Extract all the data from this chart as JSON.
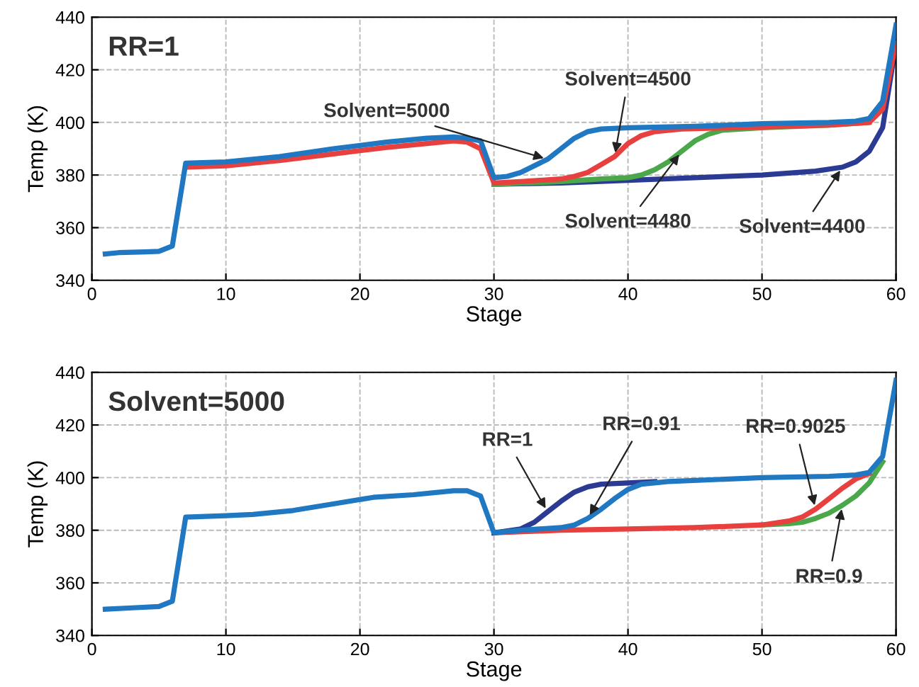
{
  "chart_data": [
    {
      "type": "line",
      "title": "RR=1",
      "xlabel": "Stage",
      "ylabel": "Temp (K)",
      "xlim": [
        0,
        60
      ],
      "ylim": [
        340,
        440
      ],
      "xticks": [
        0,
        10,
        20,
        30,
        40,
        50,
        60
      ],
      "yticks": [
        340,
        360,
        380,
        400,
        420,
        440
      ],
      "grid": true,
      "legend": false,
      "marker": "none",
      "line_style": "solid",
      "series": [
        {
          "name": "Solvent=4400",
          "color": "#2b3a92",
          "x": [
            30,
            35,
            40,
            45,
            50,
            54,
            56,
            57,
            58,
            59,
            60
          ],
          "values": [
            376.5,
            377,
            378,
            379,
            380,
            381.5,
            383,
            385,
            389,
            398,
            430
          ]
        },
        {
          "name": "Solvent=4480",
          "color": "#4aa84a",
          "x": [
            30,
            35,
            38,
            40,
            41,
            42,
            43,
            44,
            45,
            46,
            47,
            50,
            55,
            58
          ],
          "values": [
            376.5,
            377.5,
            378.5,
            379,
            380,
            382,
            385,
            389,
            393,
            395.5,
            397,
            398,
            399,
            400
          ]
        },
        {
          "name": "Solvent=4500",
          "color": "#e8403f",
          "x": [
            7,
            10,
            14,
            18,
            22,
            25,
            27,
            28,
            29,
            30,
            32,
            35,
            36,
            37,
            38,
            39,
            40,
            41,
            42,
            44,
            48,
            55,
            58,
            59,
            60
          ],
          "values": [
            383,
            383.5,
            385.5,
            388,
            390.5,
            392,
            393,
            392.5,
            390,
            377,
            377.5,
            378.5,
            379.5,
            381,
            384,
            387,
            392,
            395,
            396.5,
            397.5,
            398,
            399,
            400,
            405,
            430
          ]
        },
        {
          "name": "Solvent=5000",
          "color": "#1f78c1",
          "x": [
            1,
            2,
            4,
            5,
            6,
            7,
            10,
            14,
            18,
            22,
            25,
            27,
            28,
            29,
            30,
            31,
            32,
            34,
            35,
            36,
            37,
            38,
            40,
            45,
            50,
            55,
            57,
            58,
            59,
            60
          ],
          "values": [
            350,
            350.5,
            350.8,
            351,
            353,
            384.5,
            385,
            387,
            390,
            392.5,
            394,
            394.5,
            394,
            393,
            379,
            379.5,
            381,
            386,
            390,
            394,
            396.5,
            397.5,
            398,
            398.5,
            399.5,
            400,
            400.5,
            401.5,
            408,
            437
          ]
        }
      ]
    },
    {
      "type": "line",
      "title": "Solvent=5000",
      "xlabel": "Stage",
      "ylabel": "Temp (K)",
      "xlim": [
        0,
        60
      ],
      "ylim": [
        340,
        440
      ],
      "xticks": [
        0,
        10,
        20,
        30,
        40,
        50,
        60
      ],
      "yticks": [
        340,
        360,
        380,
        400,
        420,
        440
      ],
      "grid": true,
      "legend": false,
      "marker": "none",
      "line_style": "solid",
      "series": [
        {
          "name": "RR=0.9",
          "color": "#4aa84a",
          "x": [
            50,
            52,
            53,
            54,
            55,
            56,
            57,
            58,
            59
          ],
          "values": [
            382,
            382.5,
            383,
            384.5,
            386.5,
            389.5,
            393,
            398,
            406
          ]
        },
        {
          "name": "RR=0.9025",
          "color": "#e8403f",
          "x": [
            30,
            35,
            40,
            45,
            50,
            52,
            53,
            54,
            55,
            56,
            57,
            58
          ],
          "values": [
            379,
            380,
            380.5,
            381,
            382,
            383.5,
            385,
            388,
            392,
            396,
            399.5,
            401.5
          ]
        },
        {
          "name": "RR=1",
          "color": "#2b3a92",
          "x": [
            30,
            32,
            33,
            34,
            35,
            36,
            37,
            38,
            40,
            42
          ],
          "values": [
            379,
            380.5,
            383,
            387,
            391,
            394.5,
            396.5,
            397.5,
            398,
            398.5
          ]
        },
        {
          "name": "RR=0.91",
          "color": "#1f78c1",
          "x": [
            1,
            3,
            5,
            6,
            7,
            10,
            12,
            15,
            18,
            21,
            24,
            27,
            28,
            29,
            30,
            32,
            35,
            36,
            37,
            38,
            39,
            40,
            41,
            43,
            50,
            55,
            57,
            58,
            59,
            60
          ],
          "values": [
            350,
            350.5,
            351,
            353,
            385,
            385.5,
            386,
            387.5,
            390,
            392.5,
            393.5,
            395,
            395,
            393,
            379,
            380,
            381,
            382,
            384.5,
            388,
            392,
            395.5,
            397.5,
            398.5,
            400,
            400.5,
            401,
            402,
            408,
            437
          ]
        }
      ]
    }
  ]
}
